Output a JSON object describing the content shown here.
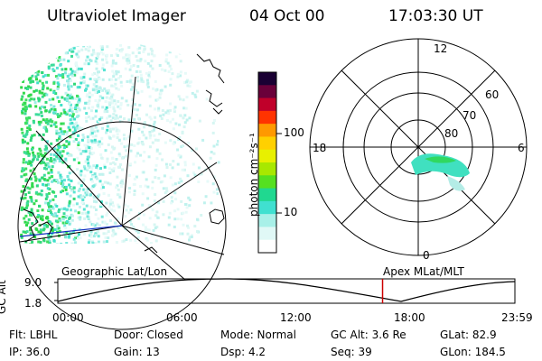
{
  "header": {
    "instrument": "Ultraviolet Imager",
    "date": "04 Oct 00",
    "time": "17:03:30 UT"
  },
  "colorbar": {
    "unit_label": "photon cm⁻²s⁻¹",
    "ticks": [
      "100",
      "10"
    ],
    "colors": [
      "#1a0033",
      "#6a003a",
      "#c0002a",
      "#ff3300",
      "#ff9900",
      "#ffd000",
      "#e8f000",
      "#a8e800",
      "#55e020",
      "#20d890",
      "#40e0d0",
      "#a8f0e8",
      "#e0f8f6",
      "#ffffff"
    ]
  },
  "polar_plot": {
    "hour_labels": {
      "top": "12",
      "left": "18",
      "right": "6",
      "bottom": "0"
    },
    "lat_labels": [
      "60",
      "70",
      "80"
    ]
  },
  "timeline": {
    "left_label": "Geographic Lat/Lon",
    "right_label": "Apex MLat/MLT",
    "y_axis_label": "GC Alt",
    "y_ticks": [
      "9.0",
      "1.8"
    ],
    "x_ticks": [
      "00:00",
      "06:00",
      "12:00",
      "18:00",
      "23:59"
    ],
    "current_time_fraction": 0.7105,
    "marker_color": "#cc0000"
  },
  "footer": {
    "row1": {
      "filter": "Flt: LBHL",
      "door": "Door: Closed",
      "mode": "Mode: Normal",
      "gc_alt": "GC Alt: 3.6 Re",
      "glat": "GLat:  82.9"
    },
    "row2": {
      "ip": "IP: 36.0",
      "gain": "Gain: 13",
      "dsp": "Dsp:    4.2",
      "seq": "Seq: 39",
      "glon": "GLon: 184.5"
    }
  }
}
